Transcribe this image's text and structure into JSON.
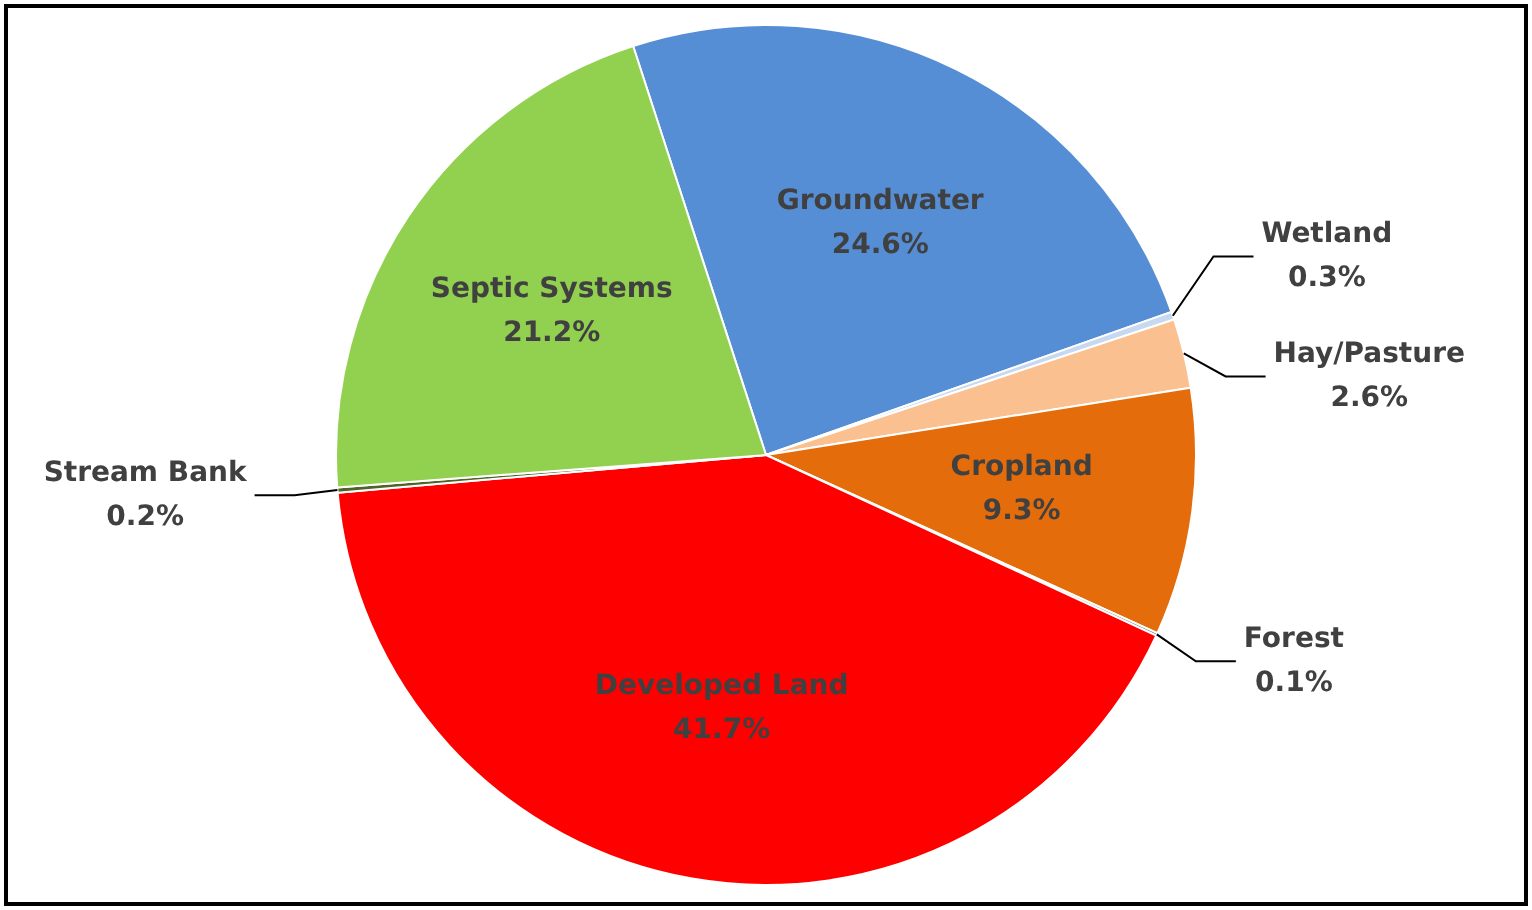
{
  "chart_data": {
    "type": "pie",
    "categories": [
      "Groundwater",
      "Wetland",
      "Hay/Pasture",
      "Cropland",
      "Forest",
      "Developed Land",
      "Stream Bank",
      "Septic Systems"
    ],
    "values": [
      24.6,
      0.3,
      2.6,
      9.3,
      0.1,
      41.7,
      0.2,
      21.2
    ],
    "value_labels": [
      "24.6%",
      "0.3%",
      "2.6%",
      "9.3%",
      "0.1%",
      "41.7%",
      "0.2%",
      "21.2%"
    ],
    "colors": [
      "#558ed5",
      "#c6d9f1",
      "#fac090",
      "#e46c0a",
      "#7f7f7f",
      "#ff0000",
      "#4f6228",
      "#92d050"
    ],
    "legend": false
  }
}
